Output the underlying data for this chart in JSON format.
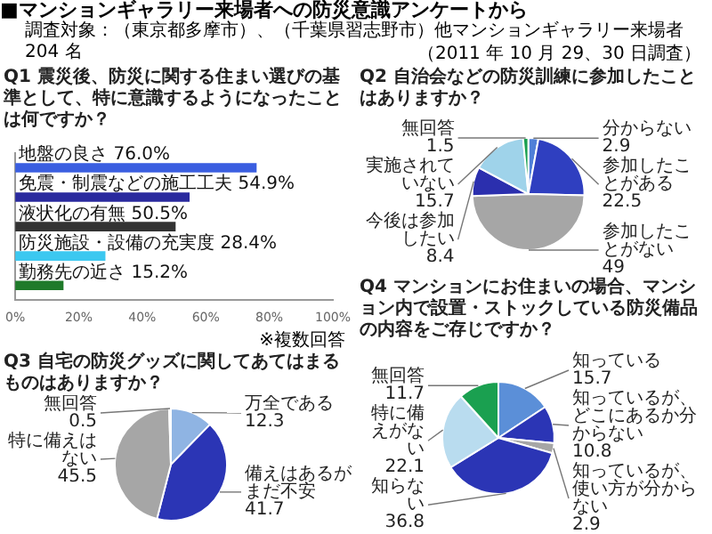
{
  "chart_data": [
    {
      "type": "other",
      "title": "■マンションギャラリー来場者への防災意識アンケートから",
      "subtitle": "調査対象：（東京都多摩市）、（千葉県習志野市）他マンションギャラリー来場者 204 名",
      "annotations": [
        "（2011 年 10 月 29、30 日調査）"
      ]
    },
    {
      "type": "bar",
      "orientation": "horizontal",
      "title": "Q1 震災後、防災に関する住まい選びの基準として、特に意識するようになったことは何ですか？",
      "categories": [
        "地盤の良さ",
        "免震・制震などの施工工夫",
        "液状化の有無",
        "防災施設・設備の充実度",
        "勤務先の近さ"
      ],
      "values": [
        76.0,
        54.9,
        50.5,
        28.4,
        15.2
      ],
      "colors": [
        "#3a5ee0",
        "#2a2a9e",
        "#333333",
        "#3cc8f0",
        "#1f7a2a"
      ],
      "value_labels": [
        "76.0%",
        "54.9%",
        "50.5%",
        "28.4%",
        "15.2%"
      ],
      "xlim": [
        0,
        100
      ],
      "xticks": [
        {
          "value": 0,
          "label": "0%"
        },
        {
          "value": 20,
          "label": "20%"
        },
        {
          "value": 40,
          "label": "40%"
        },
        {
          "value": 60,
          "label": "60%"
        },
        {
          "value": 80,
          "label": "80%"
        },
        {
          "value": 100,
          "label": "100%"
        }
      ],
      "tick_labels": "x",
      "grid": false,
      "annotations": [
        "※複数回答"
      ]
    },
    {
      "type": "pie",
      "title": "Q2 自治会などの防災訓練に参加したことはありますか？",
      "categories": [
        "分からない",
        "参加したことがある",
        "参加したことがない",
        "今後は参加したい",
        "実施されていない",
        "無回答"
      ],
      "values": [
        2.9,
        22.5,
        49,
        8.4,
        15.7,
        1.5
      ],
      "colors": [
        "#4f7fd8",
        "#2f3fc0",
        "#a6a6a6",
        "#2b2fae",
        "#9fd3ea",
        "#1aa050"
      ],
      "data_labels": true
    },
    {
      "type": "pie",
      "title": "Q3 自宅の防災グッズに関してあてはまるものはありますか？",
      "categories": [
        "万全である",
        "備えはあるがまだ不安",
        "特に備えはない",
        "無回答"
      ],
      "values": [
        12.3,
        41.7,
        45.5,
        0.5
      ],
      "colors": [
        "#8fb4e3",
        "#2b35b5",
        "#a6a6a6",
        "#1aa050"
      ],
      "data_labels": true
    },
    {
      "type": "pie",
      "title": "Q4 マンションにお住まいの場合、マンション内で設置・ストックしている防災備品の内容をご存じですか？",
      "categories": [
        "知っている",
        "知っているが、どこにあるか分からない",
        "知っているが、使い方が分からない",
        "知らない",
        "特に備えがない",
        "無回答"
      ],
      "values": [
        15.7,
        10.8,
        2.9,
        36.8,
        22.1,
        11.7
      ],
      "colors": [
        "#5b8fd8",
        "#2b35b5",
        "#a6a6a6",
        "#2b35b5",
        "#b9dcef",
        "#1aa050"
      ],
      "data_labels": true
    }
  ]
}
